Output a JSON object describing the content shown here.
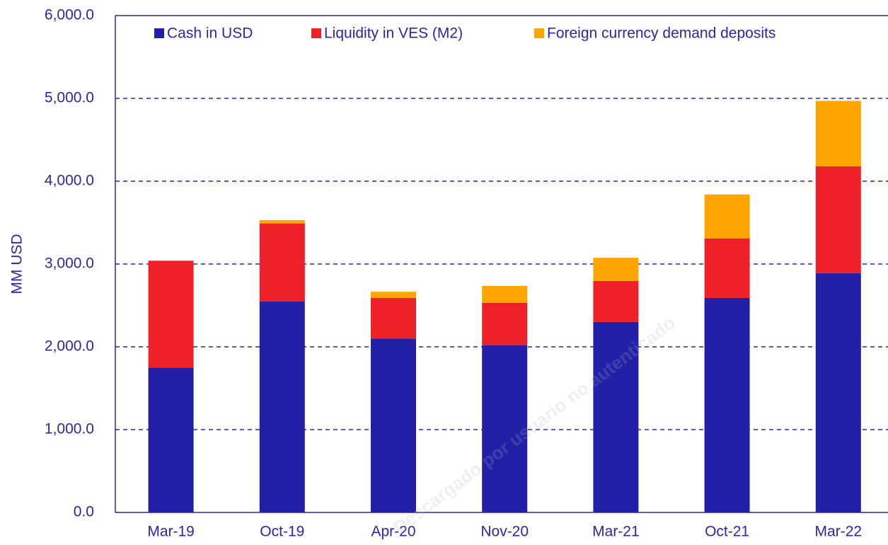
{
  "chart_data": {
    "type": "bar",
    "stacked": true,
    "y_label": "MM USD",
    "watermark": "Descargado por usuario no autenticado",
    "categories": [
      "Mar-19",
      "Oct-19",
      "Apr-20",
      "Nov-20",
      "Mar-21",
      "Oct-21",
      "Mar-22"
    ],
    "series": [
      {
        "name": "Cash in USD",
        "color": "#2320a8",
        "values": [
          1750,
          2550,
          2100,
          2020,
          2300,
          2590,
          2890
        ]
      },
      {
        "name": "Liquidity in VES (M2)",
        "color": "#ee2028",
        "values": [
          1290,
          940,
          490,
          510,
          495,
          720,
          1290
        ]
      },
      {
        "name": "Foreign currency demand deposits",
        "color": "#ffa500",
        "values": [
          0,
          40,
          75,
          205,
          280,
          530,
          790
        ]
      }
    ],
    "ylim": [
      0,
      6000
    ],
    "yticks": [
      {
        "value": 0,
        "label": "0.0"
      },
      {
        "value": 1000,
        "label": "1,000.0"
      },
      {
        "value": 2000,
        "label": "2,000.0"
      },
      {
        "value": 3000,
        "label": "3,000.0"
      },
      {
        "value": 4000,
        "label": "4,000.0"
      },
      {
        "value": 5000,
        "label": "5,000.0"
      },
      {
        "value": 6000,
        "label": "6,000.0"
      }
    ],
    "grid": true,
    "legend": "top"
  }
}
